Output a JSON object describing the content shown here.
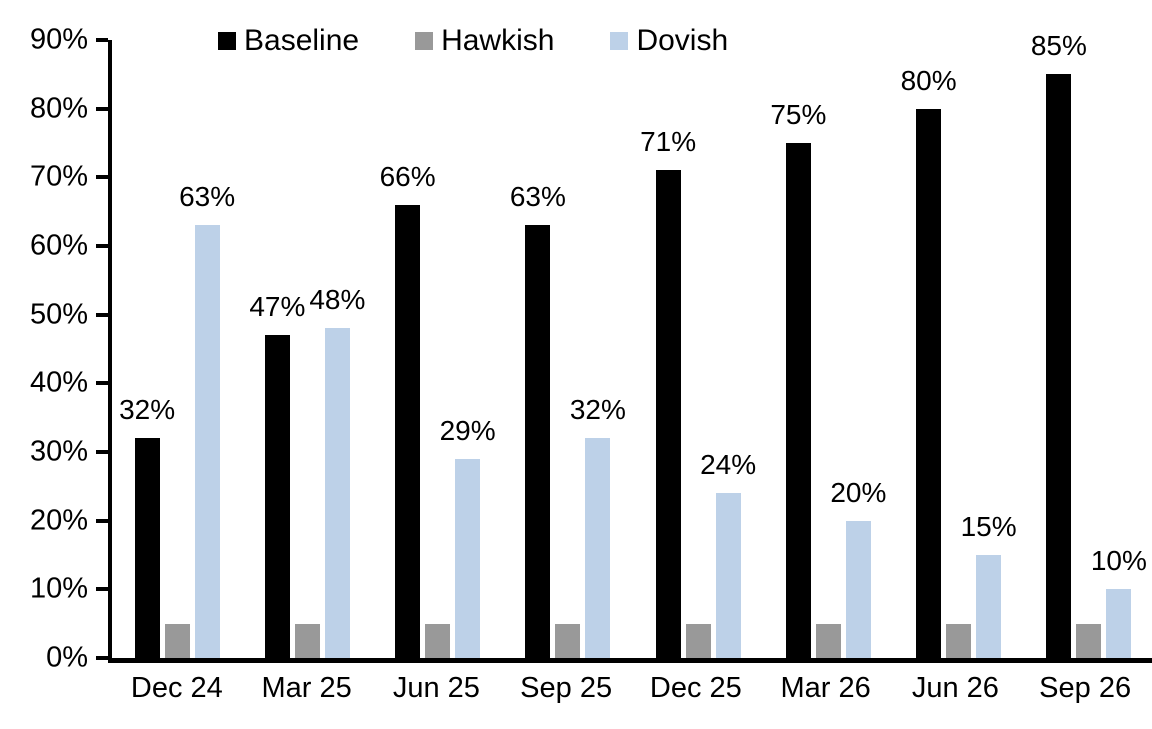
{
  "chart_data": {
    "type": "bar",
    "title": "",
    "xlabel": "",
    "ylabel": "",
    "categories": [
      "Dec 24",
      "Mar 25",
      "Jun 25",
      "Sep 25",
      "Dec 25",
      "Mar 26",
      "Jun 26",
      "Sep 26"
    ],
    "series": [
      {
        "name": "Baseline",
        "color": "#000000",
        "values": [
          32,
          47,
          66,
          63,
          71,
          75,
          80,
          85
        ],
        "data_labels": [
          "32%",
          "47%",
          "66%",
          "63%",
          "71%",
          "75%",
          "80%",
          "85%"
        ]
      },
      {
        "name": "Hawkish",
        "color": "#999999",
        "values": [
          5,
          5,
          5,
          5,
          5,
          5,
          5,
          5
        ],
        "data_labels": []
      },
      {
        "name": "Dovish",
        "color": "#BDD1E8",
        "values": [
          63,
          48,
          29,
          32,
          24,
          20,
          15,
          10
        ],
        "data_labels": [
          "63%",
          "48%",
          "29%",
          "32%",
          "24%",
          "20%",
          "15%",
          "10%"
        ]
      }
    ],
    "ylim": [
      0,
      90
    ],
    "ytick_step": 10,
    "ytick_labels": [
      "0%",
      "10%",
      "20%",
      "30%",
      "40%",
      "50%",
      "60%",
      "70%",
      "80%",
      "90%"
    ],
    "legend": {
      "position": "top",
      "entries": [
        "Baseline",
        "Hawkish",
        "Dovish"
      ]
    },
    "grid": false,
    "axis_color": "#000000",
    "background": "#FFFFFF"
  }
}
